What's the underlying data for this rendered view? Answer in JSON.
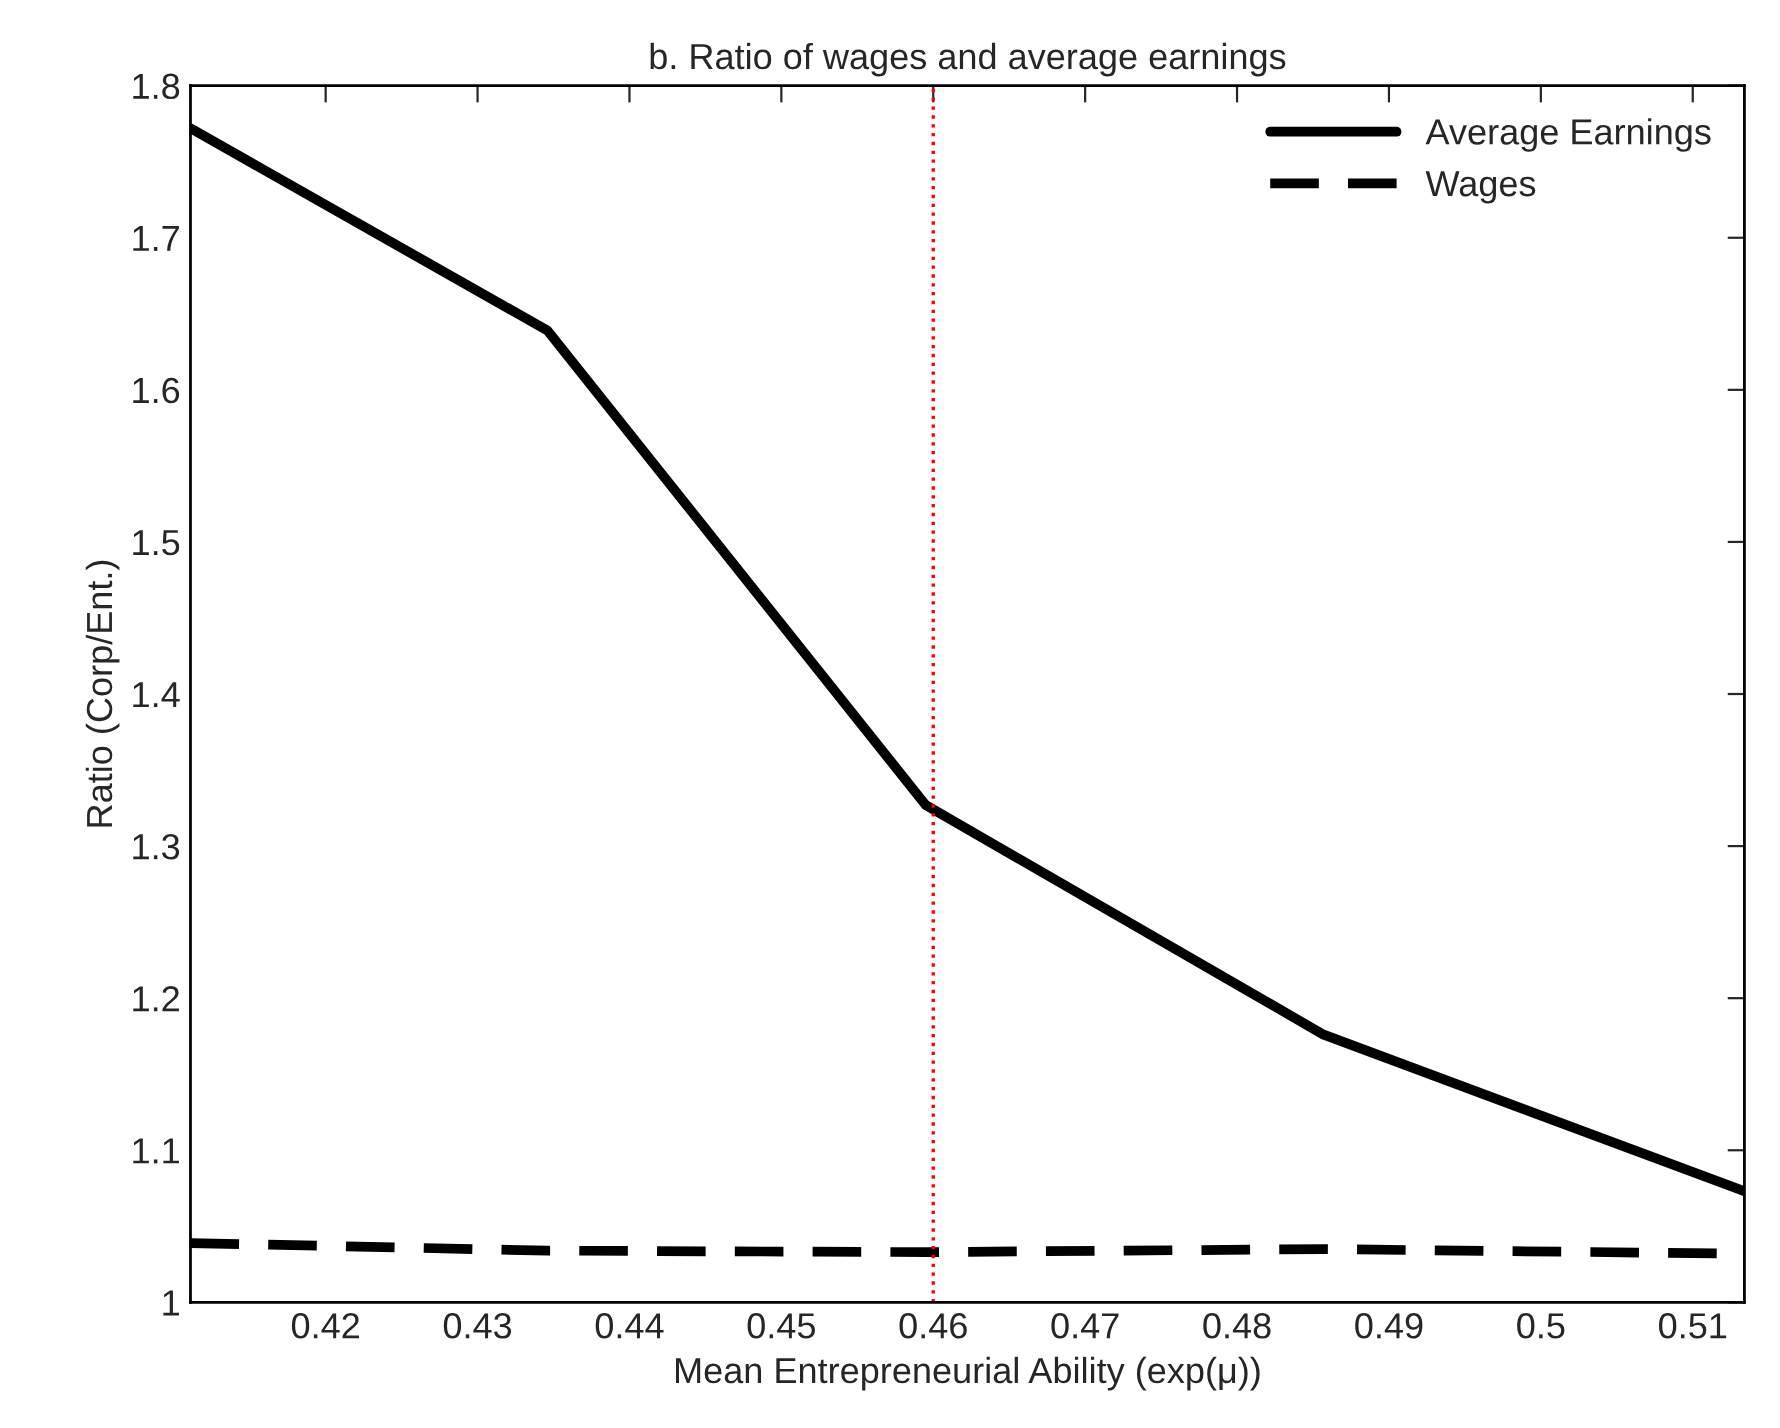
{
  "chart_data": {
    "type": "line",
    "title": "b. Ratio of wages and average earnings",
    "xlabel": "Mean Entrepreneurial Ability (exp(μ))",
    "ylabel": "Ratio (Corp/Ent.)",
    "x": [
      0.4111,
      0.4346,
      0.4595,
      0.4857,
      0.5134
    ],
    "series": [
      {
        "name": "Average Earnings",
        "color": "#000000",
        "line_style": "solid",
        "values": [
          1.772,
          1.639,
          1.327,
          1.176,
          1.073
        ]
      },
      {
        "name": "Wages",
        "color": "#000000",
        "line_style": "dashed",
        "values": [
          1.039,
          1.034,
          1.033,
          1.035,
          1.032
        ]
      }
    ],
    "xlim": [
      0.4111,
      0.5134
    ],
    "ylim": [
      1,
      1.8
    ],
    "xticks": [
      0.42,
      0.43,
      0.44,
      0.45,
      0.46,
      0.47,
      0.48,
      0.49,
      0.5,
      0.51
    ],
    "yticks": [
      1,
      1.1,
      1.2,
      1.3,
      1.4,
      1.5,
      1.6,
      1.7,
      1.8
    ],
    "ref_lines": [
      {
        "axis": "x",
        "value": 0.46,
        "color": "#ff0000",
        "line_style": "dotted"
      }
    ],
    "grid": false,
    "legend": "top right",
    "marker": "none"
  }
}
